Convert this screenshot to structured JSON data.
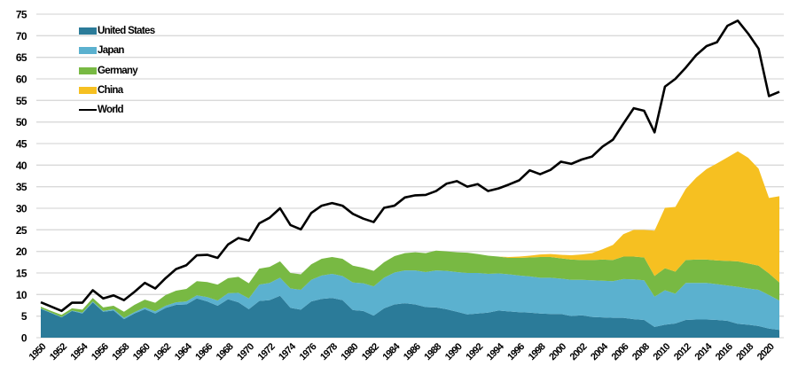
{
  "chart_data": {
    "type": "area",
    "title": "",
    "xlabel": "",
    "ylabel": "",
    "ylim": [
      0,
      75
    ],
    "yticks": [
      0,
      5,
      10,
      15,
      20,
      25,
      30,
      35,
      40,
      45,
      50,
      55,
      60,
      65,
      70,
      75
    ],
    "xtick_labels": [
      "1950",
      "1952",
      "1954",
      "1956",
      "1958",
      "1960",
      "1962",
      "1964",
      "1966",
      "1968",
      "1970",
      "1972",
      "1974",
      "1976",
      "1978",
      "1980",
      "1982",
      "1984",
      "1986",
      "1988",
      "1990",
      "1992",
      "1994",
      "1996",
      "1998",
      "2000",
      "2002",
      "2004",
      "2006",
      "2008",
      "2010",
      "2012",
      "2014",
      "2016",
      "2018",
      "2020"
    ],
    "grid": true,
    "legend_position": "upper-left",
    "stacked": true,
    "x": [
      1950,
      1951,
      1952,
      1953,
      1954,
      1955,
      1956,
      1957,
      1958,
      1959,
      1960,
      1961,
      1962,
      1963,
      1964,
      1965,
      1966,
      1967,
      1968,
      1969,
      1970,
      1971,
      1972,
      1973,
      1974,
      1975,
      1976,
      1977,
      1978,
      1979,
      1980,
      1981,
      1982,
      1983,
      1984,
      1985,
      1986,
      1987,
      1988,
      1989,
      1990,
      1991,
      1992,
      1993,
      1994,
      1995,
      1996,
      1997,
      1998,
      1999,
      2000,
      2001,
      2002,
      2003,
      2004,
      2005,
      2006,
      2007,
      2008,
      2009,
      2010,
      2011,
      2012,
      2013,
      2014,
      2015,
      2016,
      2017,
      2018,
      2019,
      2020,
      2021
    ],
    "series": [
      {
        "name": "United States",
        "color": "#2b7b99",
        "values": [
          6.7,
          5.7,
          4.7,
          6.2,
          5.6,
          8.2,
          6.0,
          6.3,
          4.3,
          5.6,
          6.6,
          5.6,
          6.9,
          7.6,
          7.7,
          9.1,
          8.4,
          7.4,
          8.9,
          8.2,
          6.6,
          8.5,
          8.7,
          9.7,
          6.9,
          6.5,
          8.4,
          9.0,
          9.2,
          8.7,
          6.4,
          6.2,
          5.1,
          6.8,
          7.7,
          8.0,
          7.7,
          7.1,
          7.0,
          6.6,
          6.0,
          5.4,
          5.6,
          5.8,
          6.3,
          6.1,
          5.9,
          5.8,
          5.6,
          5.5,
          5.5,
          5.0,
          5.2,
          4.8,
          4.7,
          4.6,
          4.6,
          4.3,
          4.1,
          2.5,
          3.0,
          3.3,
          4.1,
          4.2,
          4.2,
          4.1,
          3.9,
          3.2,
          3.0,
          2.7,
          2.1,
          1.8
        ]
      },
      {
        "name": "Japan",
        "color": "#5bb1cf",
        "values": [
          0.1,
          0.1,
          0.1,
          0.1,
          0.2,
          0.2,
          0.2,
          0.3,
          0.3,
          0.3,
          0.4,
          0.5,
          0.5,
          0.6,
          0.7,
          0.7,
          1.0,
          1.2,
          1.4,
          2.2,
          2.5,
          3.8,
          4.0,
          4.2,
          4.5,
          4.6,
          5.0,
          5.4,
          5.6,
          5.6,
          6.4,
          6.4,
          6.8,
          7.1,
          7.4,
          7.6,
          7.9,
          8.1,
          8.6,
          8.9,
          9.2,
          9.6,
          9.4,
          9.0,
          8.6,
          8.6,
          8.5,
          8.4,
          8.3,
          8.4,
          8.2,
          8.4,
          8.2,
          8.5,
          8.5,
          8.5,
          9.0,
          9.2,
          9.2,
          7.0,
          8.0,
          6.9,
          8.6,
          8.5,
          8.5,
          8.3,
          8.2,
          8.6,
          8.4,
          8.4,
          7.8,
          6.8
        ]
      },
      {
        "name": "Germany",
        "color": "#78b943",
        "values": [
          0.4,
          0.4,
          0.5,
          0.5,
          0.7,
          0.8,
          0.8,
          0.8,
          1.4,
          1.7,
          1.8,
          2.0,
          2.5,
          2.7,
          2.9,
          3.3,
          3.5,
          3.7,
          3.5,
          3.7,
          3.5,
          3.7,
          3.7,
          3.8,
          3.6,
          3.6,
          3.6,
          3.9,
          3.9,
          4.0,
          3.9,
          3.6,
          3.6,
          3.6,
          3.8,
          4.0,
          4.2,
          4.4,
          4.6,
          4.5,
          4.6,
          4.7,
          4.4,
          4.2,
          3.9,
          3.8,
          4.1,
          4.4,
          4.8,
          4.8,
          4.7,
          4.7,
          4.6,
          4.7,
          4.9,
          4.9,
          5.2,
          5.3,
          5.3,
          4.8,
          5.1,
          5.1,
          5.3,
          5.4,
          5.4,
          5.5,
          5.7,
          5.9,
          5.8,
          5.6,
          5.0,
          4.2
        ]
      },
      {
        "name": "China",
        "color": "#f6c021",
        "values": [
          0,
          0,
          0,
          0,
          0,
          0,
          0,
          0,
          0,
          0,
          0,
          0,
          0,
          0,
          0,
          0,
          0,
          0,
          0,
          0,
          0,
          0,
          0,
          0,
          0,
          0,
          0,
          0,
          0,
          0,
          0,
          0,
          0,
          0,
          0,
          0,
          0,
          0,
          0,
          0,
          0,
          0,
          0,
          0,
          0,
          0.2,
          0.3,
          0.4,
          0.6,
          0.7,
          0.8,
          1.0,
          1.3,
          1.6,
          2.4,
          3.5,
          5.2,
          6.2,
          6.4,
          10.5,
          14.0,
          15.0,
          16.5,
          19.0,
          21.0,
          22.5,
          24.0,
          25.5,
          24.5,
          22.5,
          17.5,
          20.0
        ]
      },
      {
        "name": "World",
        "color": "#000000",
        "type": "line",
        "values": [
          8.2,
          7.2,
          6.2,
          8.1,
          8.1,
          11.0,
          9.1,
          9.8,
          8.7,
          10.6,
          12.7,
          11.4,
          13.8,
          15.9,
          16.8,
          19.1,
          19.2,
          18.5,
          21.6,
          23.1,
          22.5,
          26.5,
          27.8,
          30.0,
          26.1,
          25.1,
          28.9,
          30.6,
          31.2,
          30.6,
          28.7,
          27.6,
          26.8,
          30.1,
          30.6,
          32.5,
          33.0,
          33.1,
          34.0,
          35.7,
          36.3,
          35.0,
          35.6,
          34.0,
          34.6,
          35.5,
          36.5,
          38.8,
          37.9,
          38.9,
          40.8,
          40.3,
          41.3,
          42.0,
          44.3,
          45.9,
          49.6,
          53.2,
          52.6,
          47.6,
          58.2,
          60.0,
          62.6,
          65.5,
          67.6,
          68.5,
          72.3,
          73.5,
          70.5,
          67.0,
          56.0,
          57.0
        ]
      }
    ]
  },
  "legend": {
    "items": [
      {
        "label": "United States",
        "color": "#2b7b99",
        "kind": "area"
      },
      {
        "label": "Japan",
        "color": "#5bb1cf",
        "kind": "area"
      },
      {
        "label": "Germany",
        "color": "#78b943",
        "kind": "area"
      },
      {
        "label": "China",
        "color": "#f6c021",
        "kind": "area"
      },
      {
        "label": "World",
        "color": "#000000",
        "kind": "line"
      }
    ]
  },
  "style": {
    "gridline_color": "#d9d9d9",
    "background": "#ffffff"
  }
}
